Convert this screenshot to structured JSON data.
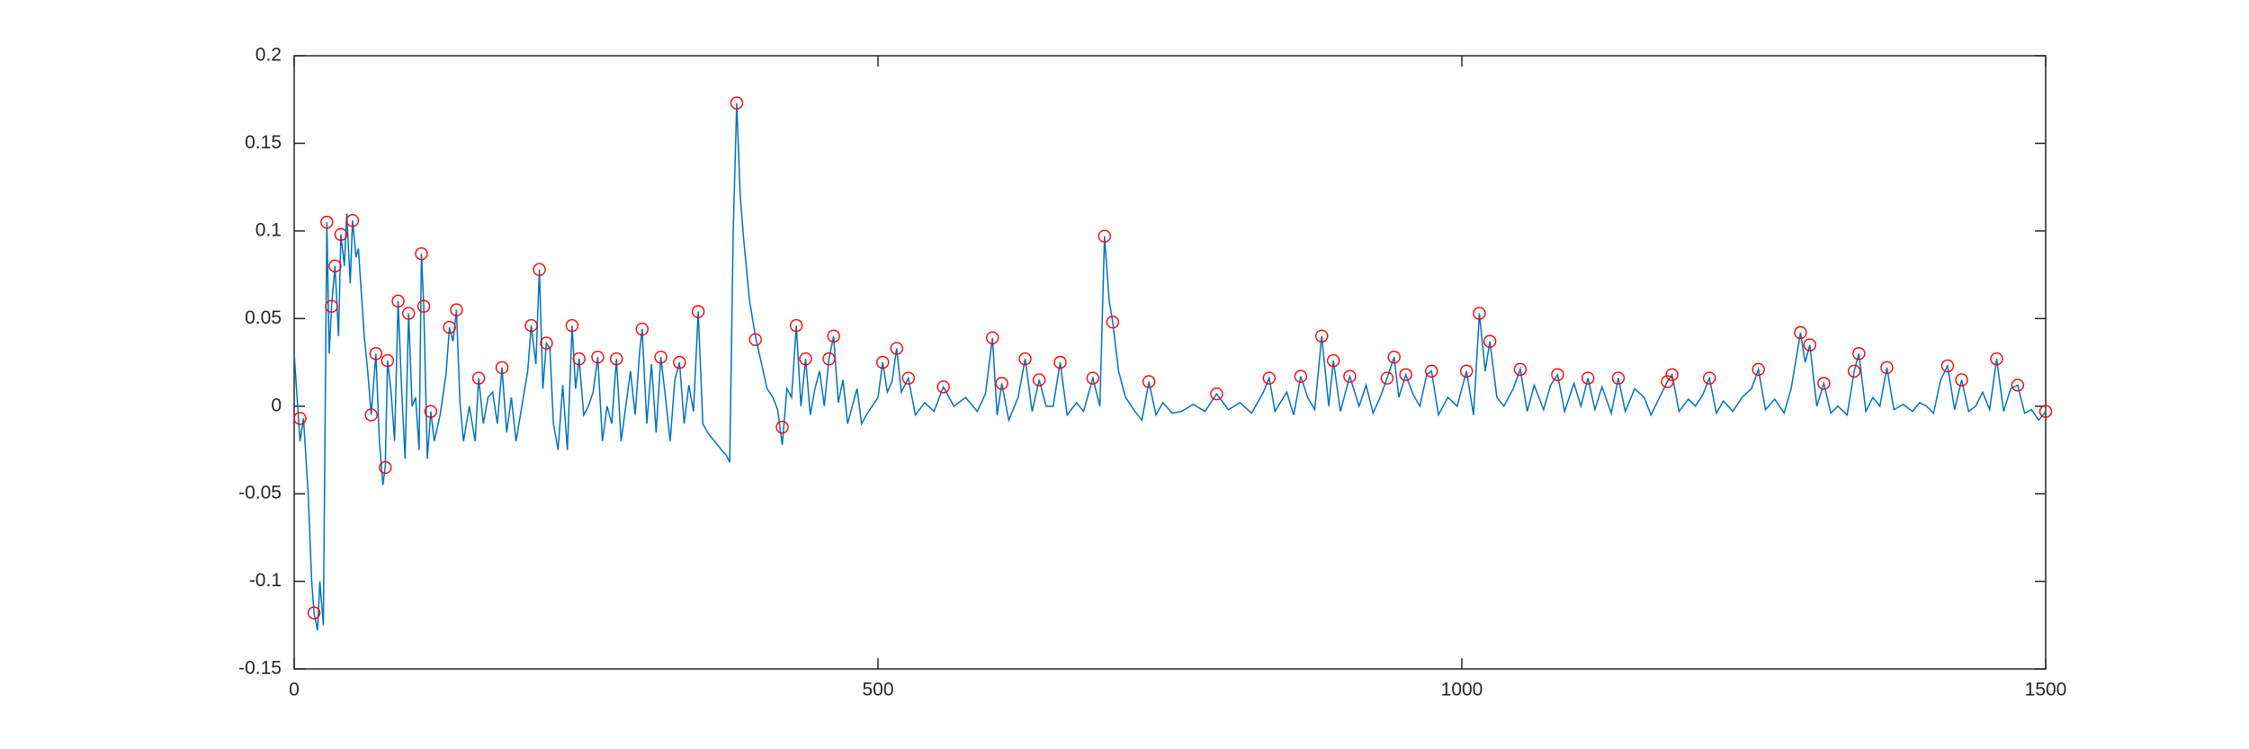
{
  "chart_data": {
    "type": "line",
    "xlim": [
      0,
      1500
    ],
    "xticks": [
      0,
      500,
      1000,
      1500
    ],
    "ylim": [
      -0.15,
      0.2
    ],
    "yticks": [
      -0.15,
      -0.1,
      -0.05,
      0,
      0.05,
      0.1,
      0.15,
      0.2
    ],
    "grid": false,
    "series": [
      {
        "color": "#0072bd",
        "marker": "none",
        "x": [
          0,
          3,
          5,
          8,
          12,
          15,
          17,
          20,
          22,
          25,
          28,
          30,
          32,
          35,
          38,
          40,
          43,
          45,
          48,
          50,
          53,
          55,
          58,
          60,
          63,
          66,
          70,
          73,
          76,
          78,
          80,
          83,
          86,
          89,
          92,
          95,
          98,
          101,
          104,
          107,
          109,
          111,
          114,
          117,
          120,
          125,
          130,
          133,
          136,
          139,
          142,
          145,
          150,
          155,
          158,
          162,
          166,
          170,
          174,
          178,
          182,
          186,
          190,
          195,
          200,
          203,
          207,
          210,
          213,
          216,
          219,
          222,
          226,
          230,
          234,
          238,
          241,
          244,
          248,
          252,
          256,
          260,
          264,
          268,
          272,
          276,
          280,
          284,
          288,
          292,
          296,
          298,
          302,
          306,
          310,
          314,
          318,
          322,
          326,
          330,
          334,
          338,
          342,
          346,
          350,
          354,
          360,
          366,
          370,
          373,
          376,
          379,
          382,
          385,
          390,
          395,
          400,
          405,
          410,
          414,
          418,
          422,
          426,
          430,
          434,
          438,
          442,
          446,
          450,
          454,
          458,
          462,
          466,
          470,
          474,
          478,
          482,
          486,
          490,
          495,
          500,
          504,
          508,
          512,
          516,
          520,
          526,
          532,
          540,
          548,
          556,
          565,
          575,
          585,
          592,
          598,
          602,
          606,
          612,
          620,
          626,
          632,
          638,
          644,
          650,
          656,
          662,
          670,
          676,
          684,
          690,
          694,
          698,
          701,
          706,
          712,
          720,
          726,
          732,
          738,
          744,
          752,
          760,
          770,
          780,
          790,
          800,
          810,
          820,
          830,
          835,
          840,
          850,
          856,
          862,
          868,
          874,
          880,
          886,
          890,
          896,
          904,
          912,
          918,
          924,
          930,
          936,
          942,
          946,
          952,
          958,
          964,
          970,
          974,
          980,
          988,
          996,
          1004,
          1010,
          1015,
          1020,
          1024,
          1030,
          1036,
          1044,
          1050,
          1056,
          1062,
          1070,
          1076,
          1082,
          1088,
          1096,
          1102,
          1108,
          1114,
          1120,
          1128,
          1134,
          1140,
          1148,
          1156,
          1162,
          1170,
          1176,
          1180,
          1186,
          1194,
          1200,
          1206,
          1212,
          1218,
          1224,
          1232,
          1240,
          1248,
          1254,
          1260,
          1268,
          1276,
          1282,
          1290,
          1294,
          1298,
          1304,
          1310,
          1316,
          1322,
          1330,
          1336,
          1340,
          1346,
          1352,
          1358,
          1364,
          1370,
          1378,
          1386,
          1392,
          1398,
          1404,
          1410,
          1416,
          1422,
          1428,
          1434,
          1440,
          1446,
          1452,
          1458,
          1464,
          1470,
          1476,
          1482,
          1488,
          1494,
          1500
        ],
        "values": [
          0.03,
          0.0,
          -0.02,
          -0.007,
          -0.05,
          -0.1,
          -0.118,
          -0.128,
          -0.1,
          -0.125,
          0.105,
          0.03,
          0.057,
          0.08,
          0.04,
          0.098,
          0.08,
          0.11,
          0.07,
          0.106,
          0.085,
          0.09,
          0.06,
          0.04,
          0.02,
          -0.005,
          0.03,
          -0.02,
          -0.045,
          -0.035,
          0.026,
          0.008,
          -0.02,
          0.06,
          0.01,
          -0.03,
          0.053,
          0.0,
          0.005,
          -0.025,
          0.087,
          0.057,
          -0.03,
          -0.003,
          -0.02,
          -0.005,
          0.018,
          0.045,
          0.037,
          0.055,
          0.002,
          -0.02,
          0.0,
          -0.02,
          0.016,
          -0.01,
          0.005,
          0.008,
          -0.01,
          0.022,
          -0.015,
          0.005,
          -0.02,
          0.0,
          0.02,
          0.046,
          0.024,
          0.078,
          0.01,
          0.036,
          0.033,
          -0.01,
          -0.025,
          0.012,
          -0.025,
          0.046,
          0.01,
          0.027,
          -0.005,
          0.0,
          0.008,
          0.028,
          -0.02,
          0.0,
          -0.01,
          0.027,
          -0.02,
          0.0,
          0.02,
          -0.005,
          0.032,
          0.044,
          -0.01,
          0.024,
          -0.015,
          0.028,
          0.005,
          -0.02,
          0.015,
          0.025,
          -0.01,
          0.012,
          -0.003,
          0.054,
          -0.01,
          -0.015,
          -0.02,
          -0.025,
          -0.028,
          -0.032,
          0.1,
          0.173,
          0.12,
          0.095,
          0.06,
          0.04,
          0.025,
          0.01,
          0.005,
          -0.002,
          -0.022,
          0.01,
          0.005,
          0.046,
          0.0,
          0.027,
          -0.005,
          0.01,
          0.02,
          0.0,
          0.027,
          0.04,
          0.002,
          0.015,
          -0.01,
          0.0,
          0.01,
          -0.01,
          -0.005,
          0.0,
          0.005,
          0.025,
          0.008,
          0.014,
          0.033,
          0.008,
          0.016,
          -0.005,
          0.002,
          -0.003,
          0.011,
          0.0,
          0.005,
          -0.003,
          0.007,
          0.039,
          -0.005,
          0.013,
          -0.008,
          0.005,
          0.027,
          -0.003,
          0.015,
          0.0,
          0.0,
          0.025,
          -0.005,
          0.002,
          -0.003,
          0.016,
          0.0,
          0.097,
          0.06,
          0.048,
          0.02,
          0.005,
          -0.003,
          -0.008,
          0.014,
          -0.005,
          0.002,
          -0.004,
          -0.003,
          0.001,
          -0.003,
          0.007,
          -0.002,
          0.002,
          -0.004,
          0.008,
          0.016,
          -0.003,
          0.008,
          -0.005,
          0.017,
          0.005,
          -0.002,
          0.04,
          0.0,
          0.026,
          -0.003,
          0.017,
          0.0,
          0.012,
          -0.004,
          0.005,
          0.016,
          0.028,
          0.005,
          0.018,
          0.007,
          0.0,
          0.018,
          0.02,
          -0.005,
          0.005,
          0.0,
          0.02,
          -0.005,
          0.053,
          0.02,
          0.037,
          0.005,
          0.0,
          0.01,
          0.021,
          -0.003,
          0.012,
          -0.002,
          0.012,
          0.018,
          -0.003,
          0.013,
          0.0,
          0.016,
          -0.002,
          0.011,
          -0.004,
          0.016,
          -0.003,
          0.01,
          0.005,
          -0.005,
          0.006,
          0.014,
          0.018,
          -0.003,
          0.004,
          0.0,
          0.006,
          0.016,
          -0.004,
          0.003,
          -0.003,
          0.005,
          0.01,
          0.021,
          -0.002,
          0.004,
          -0.004,
          0.01,
          0.042,
          0.025,
          0.035,
          0.0,
          0.013,
          -0.004,
          0.0,
          -0.005,
          0.02,
          0.03,
          -0.003,
          0.005,
          0.0,
          0.022,
          -0.002,
          0.001,
          -0.003,
          0.002,
          0.0,
          -0.004,
          0.015,
          0.023,
          -0.002,
          0.015,
          -0.003,
          0.0,
          0.008,
          -0.002,
          0.027,
          -0.003,
          0.01,
          0.012,
          -0.004,
          -0.002,
          -0.008,
          -0.003
        ]
      },
      {
        "color": "#ff0000",
        "marker": "circle",
        "x": [
          5,
          17,
          28,
          32,
          35,
          40,
          50,
          66,
          70,
          78,
          80,
          89,
          98,
          109,
          111,
          117,
          133,
          139,
          158,
          178,
          203,
          210,
          216,
          238,
          244,
          260,
          276,
          298,
          314,
          330,
          346,
          379,
          395,
          418,
          430,
          438,
          458,
          462,
          504,
          516,
          526,
          556,
          598,
          606,
          626,
          638,
          656,
          684,
          694,
          701,
          732,
          790,
          835,
          862,
          880,
          890,
          904,
          936,
          942,
          952,
          974,
          1004,
          1015,
          1024,
          1050,
          1082,
          1108,
          1134,
          1176,
          1180,
          1212,
          1254,
          1290,
          1298,
          1310,
          1336,
          1340,
          1364,
          1416,
          1428,
          1458,
          1476,
          1500
        ],
        "values": [
          -0.007,
          -0.118,
          0.105,
          0.057,
          0.08,
          0.098,
          0.106,
          -0.005,
          0.03,
          -0.035,
          0.026,
          0.06,
          0.053,
          0.087,
          0.057,
          -0.003,
          0.045,
          0.055,
          0.016,
          0.022,
          0.046,
          0.078,
          0.036,
          0.046,
          0.027,
          0.028,
          0.027,
          0.044,
          0.028,
          0.025,
          0.054,
          0.173,
          0.038,
          -0.012,
          0.046,
          0.027,
          0.027,
          0.04,
          0.025,
          0.033,
          0.016,
          0.011,
          0.039,
          0.013,
          0.027,
          0.015,
          0.025,
          0.016,
          0.097,
          0.048,
          0.014,
          0.007,
          0.016,
          0.017,
          0.04,
          0.026,
          0.017,
          0.016,
          0.028,
          0.018,
          0.02,
          0.02,
          0.053,
          0.037,
          0.021,
          0.018,
          0.016,
          0.016,
          0.014,
          0.018,
          0.016,
          0.021,
          0.042,
          0.035,
          0.013,
          0.02,
          0.03,
          0.022,
          0.023,
          0.015,
          0.027,
          0.012,
          -0.003
        ]
      }
    ]
  }
}
